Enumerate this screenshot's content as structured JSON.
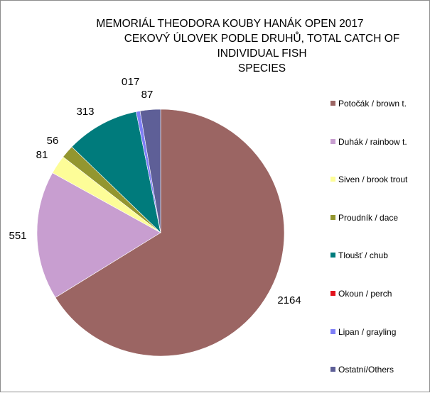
{
  "chart_data": {
    "type": "pie",
    "title": "MEMORIÁL THEODORA KOUBY HANÁK OPEN 2017",
    "subtitle_lines": [
      "CEKOVÝ ÚLOVEK PODLE DRUHŮ, TOTAL CATCH OF INDIVIDUAL FISH",
      "SPECIES"
    ],
    "legend_position": "right",
    "categories": [
      "Potočák / brown t.",
      "Duhák / rainbow t.",
      "Siven / brook trout",
      "Proudník / dace",
      "Tloušť / chub",
      "Okoun / perch",
      "Lipan / grayling",
      "Ostatní/Others"
    ],
    "values": [
      2164,
      551,
      81,
      56,
      313,
      0,
      17,
      87
    ],
    "colors": [
      "#9b6563",
      "#c89ed0",
      "#fdfd98",
      "#93962f",
      "#007b7c",
      "#e2121c",
      "#7f7ff7",
      "#5e5f97"
    ]
  }
}
